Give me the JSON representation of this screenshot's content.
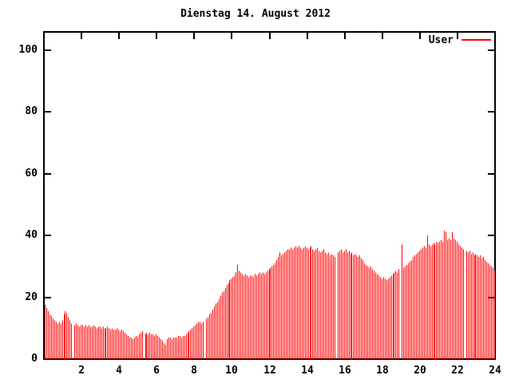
{
  "title": "Dienstag 14. August 2012",
  "legend": {
    "label": "User",
    "color": "#ff0000"
  },
  "axes": {
    "y_tick_labels": [
      "0",
      "20",
      "40",
      "60",
      "80",
      "100"
    ],
    "x_tick_labels": [
      "2",
      "4",
      "6",
      "8",
      "10",
      "12",
      "14",
      "16",
      "18",
      "20",
      "22",
      "24"
    ]
  },
  "colors": {
    "series": "#ff0000",
    "axis": "#000000",
    "background": "#ffffff"
  },
  "chart_data": {
    "type": "bar",
    "style": "impulses",
    "title": "Dienstag 14. August 2012",
    "xlabel": "",
    "ylabel": "",
    "x_unit": "hour_of_day",
    "x_range": [
      0,
      24
    ],
    "y_range": [
      0,
      105
    ],
    "x_ticks": [
      2,
      4,
      6,
      8,
      10,
      12,
      14,
      16,
      18,
      20,
      22,
      24
    ],
    "y_ticks": [
      0,
      20,
      40,
      60,
      80,
      100
    ],
    "grid": false,
    "legend_position": "top-right-inside",
    "sample_interval_minutes": 5,
    "series": [
      {
        "name": "User",
        "color": "#ff0000",
        "values": [
          17.5,
          16.5,
          15.5,
          14.5,
          14,
          13,
          12.5,
          12,
          11.5,
          12,
          11.5,
          12.5,
          14.5,
          15.5,
          15,
          13.5,
          12.5,
          11.5,
          null,
          11,
          11.5,
          11,
          10.5,
          11,
          11,
          10.5,
          11,
          10.5,
          11,
          10.5,
          10.5,
          11,
          10.5,
          10,
          10.5,
          10.5,
          10,
          10.5,
          10,
          10,
          10.5,
          10,
          9.5,
          10,
          9.5,
          9.5,
          10,
          9.5,
          9,
          9.5,
          9,
          8.5,
          8,
          7.5,
          7,
          7,
          6.5,
          7,
          7.5,
          7,
          8,
          8.5,
          9,
          null,
          8,
          8.5,
          8,
          8.5,
          8,
          8,
          7.5,
          8,
          7.5,
          7,
          6.5,
          6,
          5,
          4.5,
          6.5,
          7,
          7,
          6.5,
          7,
          7,
          7,
          7.5,
          7.5,
          7,
          7.5,
          7.5,
          8,
          8.5,
          9,
          9.5,
          10,
          10.5,
          11,
          11.5,
          12,
          12,
          11.5,
          12,
          null,
          13,
          13.5,
          14.5,
          15,
          16,
          17,
          18,
          18.5,
          19.5,
          20.5,
          21.5,
          22,
          23,
          24,
          24.5,
          25.5,
          26,
          26.5,
          27,
          28,
          30.5,
          28.5,
          28,
          27.5,
          27,
          27.5,
          27,
          26.5,
          27,
          27,
          26.5,
          27.5,
          27,
          27.5,
          28,
          27.5,
          28,
          27.5,
          28,
          28.5,
          29,
          29.5,
          30,
          30.5,
          31,
          32,
          33,
          34.5,
          33.5,
          34,
          34.5,
          35,
          35.5,
          35.5,
          36,
          35.5,
          36,
          36.5,
          36,
          36.5,
          36,
          35.5,
          36,
          36.5,
          36,
          35.5,
          36,
          36.5,
          35.5,
          35,
          35.5,
          36,
          35,
          34.5,
          35,
          35.5,
          34.5,
          34,
          34.5,
          33.5,
          34,
          33.5,
          33,
          null,
          34.5,
          35,
          35.5,
          34.5,
          35,
          35.5,
          34.5,
          35,
          34,
          34.5,
          33.5,
          34,
          33.5,
          33,
          33.5,
          32.5,
          32,
          31,
          30.5,
          30,
          29.5,
          30,
          29,
          28.5,
          28,
          27.5,
          27,
          26.5,
          26,
          26.5,
          26,
          25.5,
          26,
          26.5,
          27,
          27.5,
          28,
          28.5,
          28,
          29,
          null,
          37,
          29.5,
          30,
          30.5,
          31,
          31.5,
          32,
          33,
          33.5,
          34,
          34.5,
          35,
          35.5,
          36,
          36.5,
          36,
          40,
          37,
          36.5,
          37,
          37.5,
          37,
          38,
          37.5,
          38,
          38.5,
          38,
          41.5,
          41,
          38.5,
          39,
          38.5,
          41,
          39,
          38.5,
          38,
          37,
          36.5,
          36,
          35.5,
          null,
          35,
          34.5,
          35,
          34,
          34.5,
          33.5,
          34,
          33.5,
          33,
          33.5,
          32.5,
          33,
          32,
          31.5,
          31,
          30.5,
          30,
          29.5,
          28.5
        ]
      }
    ]
  }
}
